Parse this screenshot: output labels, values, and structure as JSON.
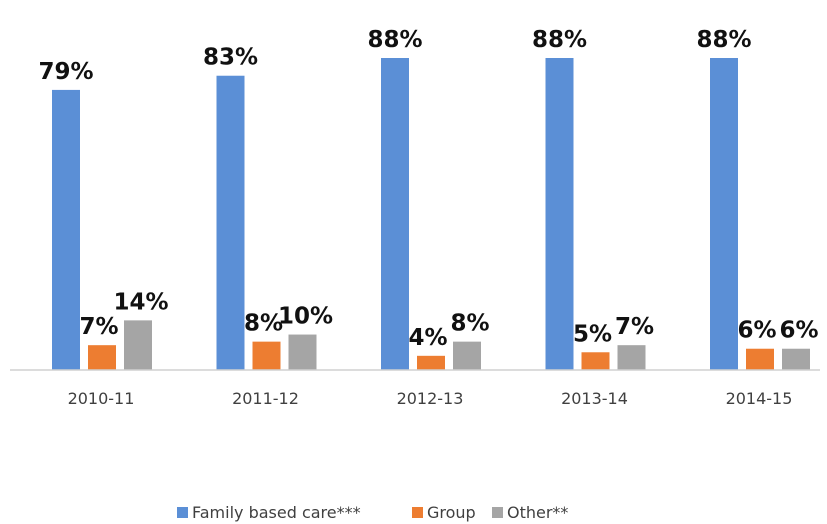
{
  "chart_data": {
    "type": "bar",
    "categories": [
      "2010-11",
      "2011-12",
      "2012-13",
      "2013-14",
      "2014-15"
    ],
    "series": [
      {
        "name": "Family based care***",
        "color": "#5B8FD6",
        "values": [
          79,
          83,
          88,
          88,
          88
        ],
        "labels": [
          "79%",
          "83%",
          "88%",
          "88%",
          "88%"
        ]
      },
      {
        "name": "Group",
        "color": "#ED7D31",
        "values": [
          7,
          8,
          4,
          5,
          6
        ],
        "labels": [
          "7%",
          "8%",
          "4%",
          "5%",
          "6%"
        ]
      },
      {
        "name": "Other**",
        "color": "#A5A5A5",
        "values": [
          14,
          10,
          8,
          7,
          6
        ],
        "labels": [
          "14%",
          "10%",
          "8%",
          "7%",
          "6%"
        ]
      }
    ],
    "title": "",
    "xlabel": "",
    "ylabel": "",
    "ylim": [
      0,
      100
    ],
    "grid": false,
    "legend_position": "bottom"
  }
}
